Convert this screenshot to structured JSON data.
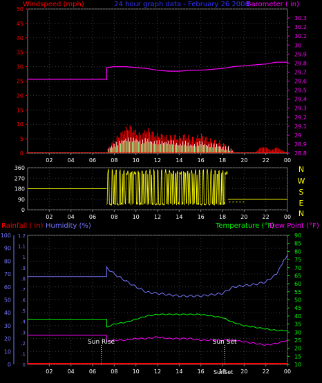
{
  "colors": {
    "background": "#000000",
    "frame": "#808080",
    "grid": "#404040",
    "tick_text": "#ffffff",
    "windspeed": "#ff0000",
    "wind_avg": "#80ff80",
    "wind_light": "#ffffff",
    "barometer": "#ff00ff",
    "title": "#3333ff",
    "direction": "#ffff00",
    "rainfall": "#ff0000",
    "humidity": "#7777ff",
    "temperature": "#00ff00",
    "dewpoint": "#ff00ff",
    "sun_label": "#ffffff"
  },
  "header": {
    "windspeed_label": "Windspeed (mph)",
    "title": "24 hour graph data - February 26 2008",
    "barometer_label": "Barometer ( in)"
  },
  "direction_letters": [
    "N",
    "W",
    "S",
    "E",
    "N"
  ],
  "bottom_labels": {
    "rainfall": "Rainfall ( in)",
    "humidity": "Humidity (%)",
    "temperature": "Temperature (°F)",
    "dewpoint": "Dew Point (°F)"
  },
  "sun_labels": {
    "sun_rise": "Sun Rise",
    "sun_set": "Sun Set",
    "sun_set_axis": "SunSet"
  },
  "chart_data": [
    {
      "type": "line",
      "id": "wind_baro",
      "x_ticks": [
        "02",
        "04",
        "06",
        "08",
        "10",
        "12",
        "14",
        "16",
        "18",
        "20",
        "22",
        "00"
      ],
      "xlim": [
        0,
        24
      ],
      "ylabel": "Windspeed (mph)",
      "ylim": [
        0,
        50
      ],
      "y_ticks": [
        0,
        5,
        10,
        15,
        20,
        25,
        30,
        35,
        40,
        45,
        50
      ],
      "y2label": "Barometer ( in)",
      "y2lim": [
        28.8,
        30.4
      ],
      "y2_ticks": [
        "28.8",
        "28.9",
        "29",
        "29.1",
        "29.2",
        "29.3",
        "29.4",
        "29.5",
        "29.6",
        "29.7",
        "29.8",
        "29.9",
        "30",
        "30.1",
        "30.2",
        "30.3"
      ],
      "series": [
        {
          "name": "Barometer",
          "axis": "right",
          "x": [
            0,
            7.3,
            7.3,
            8,
            9,
            10,
            11,
            12,
            13,
            14,
            15,
            16,
            17,
            18,
            19,
            20,
            21,
            22,
            23,
            24
          ],
          "values": [
            29.62,
            29.62,
            29.75,
            29.76,
            29.76,
            29.75,
            29.74,
            29.72,
            29.71,
            29.71,
            29.72,
            29.72,
            29.73,
            29.74,
            29.76,
            29.77,
            29.78,
            29.79,
            29.81,
            29.81
          ]
        },
        {
          "name": "Windspeed gust",
          "axis": "left",
          "x": [
            0,
            7.3,
            7.5,
            8,
            8.5,
            9,
            9.5,
            10,
            10.5,
            11,
            11.5,
            12,
            12.5,
            13,
            13.5,
            14,
            14.5,
            15,
            15.5,
            16,
            16.5,
            17,
            17.5,
            18,
            18.5,
            19,
            20,
            21,
            21.5,
            22,
            22.5,
            23,
            23.5,
            24
          ],
          "values": [
            0,
            0,
            3,
            5,
            7,
            9,
            10,
            8,
            7,
            9,
            8,
            7,
            7,
            6,
            7,
            6,
            7,
            6,
            6,
            7,
            6,
            5,
            5,
            4,
            3,
            1,
            0,
            0,
            2,
            2,
            1,
            2,
            1,
            0
          ]
        },
        {
          "name": "Windspeed average",
          "axis": "left",
          "x": [
            0,
            7.3,
            7.5,
            8,
            8.5,
            9,
            9.5,
            10,
            10.5,
            11,
            11.5,
            12,
            12.5,
            13,
            13.5,
            14,
            14.5,
            15,
            15.5,
            16,
            16.5,
            17,
            17.5,
            18,
            18.5,
            19,
            24
          ],
          "values": [
            0,
            0,
            1,
            2,
            3,
            4,
            4,
            4,
            3,
            4,
            3,
            3,
            3,
            3,
            3,
            2,
            3,
            2,
            2,
            3,
            2,
            2,
            2,
            1,
            1,
            0,
            0
          ]
        }
      ]
    },
    {
      "type": "line",
      "id": "direction",
      "x_ticks": [
        "02",
        "04",
        "06",
        "08",
        "10",
        "12",
        "14",
        "16",
        "18",
        "20",
        "22",
        "00"
      ],
      "xlim": [
        0,
        24
      ],
      "ylim": [
        0,
        360
      ],
      "y_ticks": [
        0,
        90,
        180,
        270,
        360
      ],
      "series": [
        {
          "name": "Wind direction",
          "x": [
            0,
            7.3,
            7.3,
            7.5,
            8,
            8.5,
            9,
            10,
            11,
            12,
            13,
            14,
            15,
            16,
            17,
            18,
            18.5,
            18.5,
            19,
            20,
            24
          ],
          "values": [
            180,
            180,
            60,
            20,
            40,
            300,
            320,
            300,
            330,
            310,
            320,
            300,
            310,
            320,
            300,
            310,
            300,
            90,
            90,
            90,
            90
          ]
        }
      ]
    },
    {
      "type": "line",
      "id": "temp_hum",
      "x_ticks": [
        "02",
        "04",
        "06",
        "08",
        "10",
        "12",
        "14",
        "16",
        "18",
        "20",
        "22",
        "00"
      ],
      "xlim": [
        0,
        24
      ],
      "y1label": "Rainfall ( in)",
      "y1lim": [
        0,
        1.2
      ],
      "y1_ticks": [
        "0",
        ".1",
        ".2",
        ".3",
        ".4",
        ".5",
        ".6",
        ".7",
        ".8",
        ".9",
        "1",
        "1.1",
        "1.2"
      ],
      "y2label": "Humidity (%)",
      "y2lim": [
        0,
        100
      ],
      "y2_ticks": [
        0,
        10,
        20,
        30,
        40,
        50,
        60,
        70,
        80,
        90,
        100
      ],
      "y3label": "Temperature (°F) / Dew Point (°F)",
      "y3lim": [
        10,
        90
      ],
      "y3_ticks": [
        10,
        15,
        20,
        25,
        30,
        35,
        40,
        45,
        50,
        55,
        60,
        65,
        70,
        75,
        80,
        85,
        90
      ],
      "sun_rise_hour": 6.8,
      "sun_set_hour": 18.2,
      "series": [
        {
          "name": "Humidity",
          "axis": "humidity",
          "x": [
            0,
            7.3,
            7.3,
            8,
            9,
            10,
            11,
            12,
            13,
            14,
            15,
            16,
            17,
            18,
            19,
            20,
            21,
            22,
            23,
            23.5,
            24
          ],
          "values": [
            68,
            68,
            75,
            70,
            65,
            60,
            56,
            55,
            54,
            53,
            53,
            53,
            54,
            55,
            60,
            61,
            62,
            64,
            70,
            78,
            85
          ]
        },
        {
          "name": "Temperature",
          "axis": "temp",
          "x": [
            0,
            7.3,
            7.3,
            8,
            9,
            10,
            11,
            12,
            13,
            14,
            15,
            16,
            17,
            18,
            19,
            20,
            21,
            22,
            23,
            24
          ],
          "values": [
            38,
            38,
            33,
            35,
            36,
            38,
            40,
            41,
            41,
            41,
            41,
            41,
            40,
            39,
            36,
            34,
            33,
            32,
            31,
            31
          ]
        },
        {
          "name": "Dew Point",
          "axis": "temp",
          "x": [
            0,
            7.3,
            7.3,
            8,
            9,
            10,
            11,
            12,
            13,
            14,
            15,
            16,
            17,
            18,
            19,
            20,
            21,
            22,
            23,
            24
          ],
          "values": [
            28,
            28,
            24,
            25,
            25,
            26,
            26,
            27,
            26,
            26,
            26,
            25,
            25,
            25,
            25,
            24,
            23,
            22,
            23,
            25
          ]
        },
        {
          "name": "Rainfall",
          "axis": "rain",
          "x": [
            0,
            24
          ],
          "values": [
            0,
            0
          ]
        }
      ]
    }
  ]
}
